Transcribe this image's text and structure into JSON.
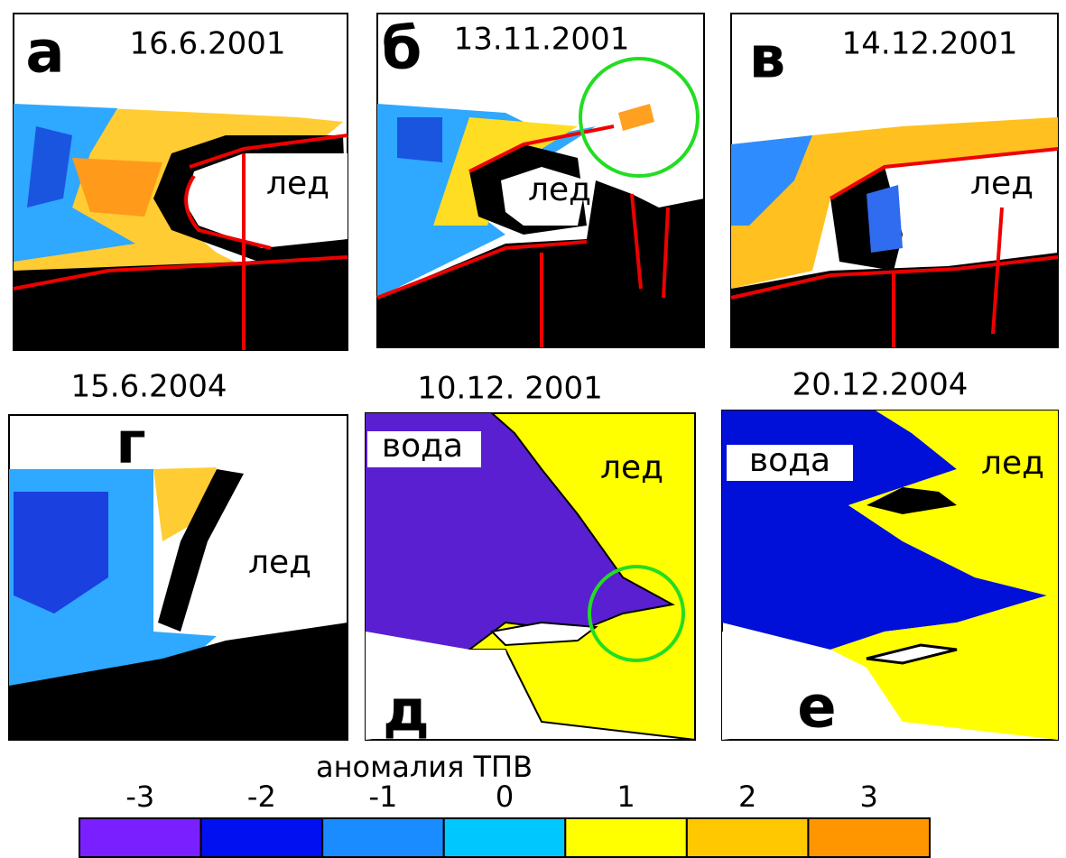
{
  "panels": [
    {
      "letter": "а",
      "date": "16.6.2001",
      "labels": [
        "лед"
      ]
    },
    {
      "letter": "б",
      "date": "13.11.2001",
      "labels": [
        "лед"
      ]
    },
    {
      "letter": "в",
      "date": "14.12.2001",
      "labels": [
        "лед"
      ]
    },
    {
      "letter": "г",
      "date": "15.6.2004",
      "labels": [
        "лед"
      ]
    },
    {
      "letter": "д",
      "date": "10.12. 2001",
      "labels": [
        "вода",
        "лед"
      ]
    },
    {
      "letter": "е",
      "date": "20.12.2004",
      "labels": [
        "вода",
        "лед"
      ]
    }
  ],
  "colorbar": {
    "title": "аномалия ТПВ",
    "ticks": [
      -3,
      -2,
      -1,
      0,
      1,
      2,
      3
    ],
    "colors": [
      "#7a1fff",
      "#0010f0",
      "#1a8cff",
      "#00c8ff",
      "#ffff00",
      "#ffc800",
      "#ff9600"
    ]
  }
}
